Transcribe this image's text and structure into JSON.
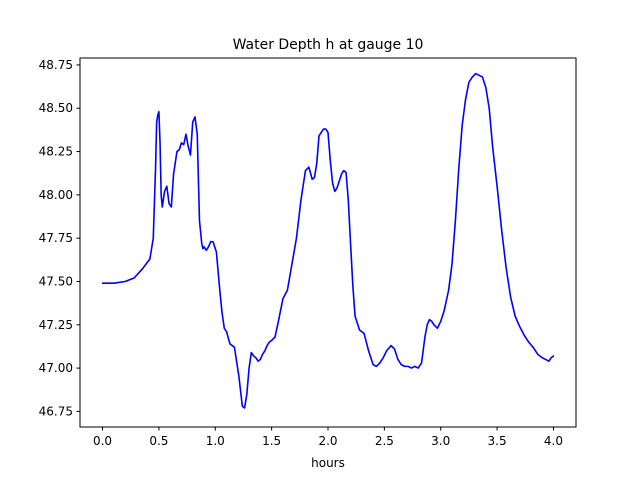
{
  "chart_data": {
    "type": "line",
    "title": "Water Depth h at gauge 10",
    "xlabel": "hours",
    "ylabel": "",
    "xlim": [
      -0.2,
      4.2
    ],
    "ylim": [
      46.66,
      48.79
    ],
    "xticks": [
      0.0,
      0.5,
      1.0,
      1.5,
      2.0,
      2.5,
      3.0,
      3.5,
      4.0
    ],
    "xtick_labels": [
      "0.0",
      "0.5",
      "1.0",
      "1.5",
      "2.0",
      "2.5",
      "3.0",
      "3.5",
      "4.0"
    ],
    "yticks": [
      46.75,
      47.0,
      47.25,
      47.5,
      47.75,
      48.0,
      48.25,
      48.5,
      48.75
    ],
    "ytick_labels": [
      "46.75",
      "47.00",
      "47.25",
      "47.50",
      "47.75",
      "48.00",
      "48.25",
      "48.50",
      "48.75"
    ],
    "grid": false,
    "series": [
      {
        "color": "#0000ff",
        "x": [
          0.0,
          0.1,
          0.2,
          0.28,
          0.35,
          0.42,
          0.45,
          0.47,
          0.48,
          0.49,
          0.5,
          0.51,
          0.52,
          0.53,
          0.55,
          0.57,
          0.59,
          0.61,
          0.63,
          0.66,
          0.68,
          0.7,
          0.72,
          0.74,
          0.76,
          0.78,
          0.8,
          0.82,
          0.84,
          0.86,
          0.88,
          0.89,
          0.9,
          0.92,
          0.94,
          0.96,
          0.98,
          1.01,
          1.04,
          1.06,
          1.08,
          1.1,
          1.13,
          1.17,
          1.21,
          1.24,
          1.26,
          1.28,
          1.3,
          1.32,
          1.34,
          1.36,
          1.38,
          1.4,
          1.42,
          1.44,
          1.46,
          1.48,
          1.5,
          1.53,
          1.56,
          1.6,
          1.64,
          1.68,
          1.72,
          1.76,
          1.8,
          1.83,
          1.86,
          1.88,
          1.9,
          1.92,
          1.94,
          1.96,
          1.98,
          2.0,
          2.02,
          2.04,
          2.06,
          2.08,
          2.1,
          2.12,
          2.14,
          2.16,
          2.18,
          2.2,
          2.22,
          2.24,
          2.28,
          2.32,
          2.36,
          2.4,
          2.43,
          2.46,
          2.49,
          2.52,
          2.56,
          2.59,
          2.62,
          2.65,
          2.68,
          2.71,
          2.74,
          2.77,
          2.8,
          2.83,
          2.86,
          2.88,
          2.9,
          2.92,
          2.94,
          2.97,
          3.0,
          3.03,
          3.07,
          3.1,
          3.13,
          3.16,
          3.19,
          3.22,
          3.25,
          3.28,
          3.31,
          3.34,
          3.37,
          3.4,
          3.43,
          3.46,
          3.5,
          3.54,
          3.58,
          3.62,
          3.66,
          3.7,
          3.74,
          3.78,
          3.82,
          3.86,
          3.9,
          3.93,
          3.96,
          3.98,
          4.0
        ],
        "y": [
          47.49,
          47.49,
          47.5,
          47.52,
          47.57,
          47.63,
          47.75,
          48.15,
          48.42,
          48.46,
          48.48,
          48.3,
          48.0,
          47.93,
          48.02,
          48.05,
          47.95,
          47.93,
          48.12,
          48.25,
          48.26,
          48.3,
          48.29,
          48.35,
          48.28,
          48.23,
          48.42,
          48.45,
          48.35,
          47.85,
          47.72,
          47.69,
          47.7,
          47.68,
          47.7,
          47.73,
          47.73,
          47.67,
          47.45,
          47.32,
          47.23,
          47.21,
          47.14,
          47.12,
          46.95,
          46.78,
          46.77,
          46.85,
          47.0,
          47.09,
          47.07,
          47.06,
          47.04,
          47.05,
          47.08,
          47.1,
          47.13,
          47.15,
          47.16,
          47.18,
          47.27,
          47.4,
          47.45,
          47.6,
          47.75,
          47.97,
          48.14,
          48.16,
          48.09,
          48.1,
          48.18,
          48.34,
          48.36,
          48.38,
          48.38,
          48.36,
          48.2,
          48.07,
          48.02,
          48.04,
          48.08,
          48.12,
          48.14,
          48.13,
          47.97,
          47.72,
          47.48,
          47.3,
          47.22,
          47.2,
          47.1,
          47.02,
          47.01,
          47.03,
          47.06,
          47.1,
          47.13,
          47.11,
          47.05,
          47.02,
          47.01,
          47.01,
          47.0,
          47.01,
          47.0,
          47.03,
          47.18,
          47.25,
          47.28,
          47.27,
          47.25,
          47.23,
          47.27,
          47.33,
          47.45,
          47.6,
          47.85,
          48.15,
          48.4,
          48.55,
          48.65,
          48.68,
          48.7,
          48.69,
          48.68,
          48.62,
          48.5,
          48.28,
          48.05,
          47.8,
          47.58,
          47.41,
          47.3,
          47.24,
          47.19,
          47.15,
          47.12,
          47.08,
          47.06,
          47.05,
          47.04,
          47.06,
          47.07
        ]
      }
    ]
  }
}
